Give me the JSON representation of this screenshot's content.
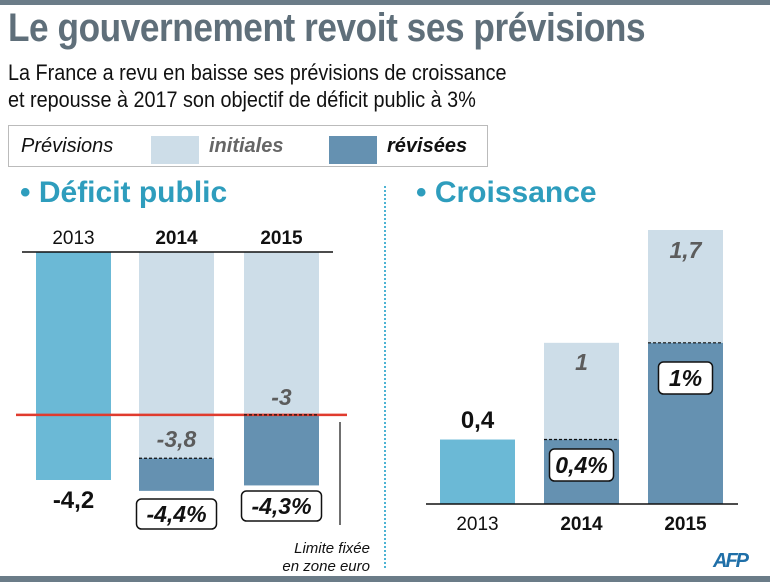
{
  "header": {
    "title": "Le gouvernement revoit ses prévisions",
    "subtitle_line1": "La France a revu en baisse ses prévisions de croissance",
    "subtitle_line2": "et repousse à 2017 son objectif de déficit public à 3%"
  },
  "legend": {
    "label": "Prévisions",
    "initial": "initiales",
    "revised": "révisées"
  },
  "colors": {
    "actual": "#6bb9d6",
    "initial": "#cddde8",
    "revised": "#6591b1",
    "limit": "#e03b2e",
    "section": "#2e9dbd"
  },
  "source": "AFP",
  "chart_data": [
    {
      "type": "bar",
      "title": "• Déficit public",
      "categories": [
        "2013",
        "2014",
        "2015"
      ],
      "series": [
        {
          "name": "initiales",
          "values": [
            null,
            -3.8,
            -3.0
          ]
        },
        {
          "name": "révisées",
          "values": [
            -4.2,
            -4.4,
            -4.3
          ]
        }
      ],
      "labels": {
        "actual": [
          "-4,2"
        ],
        "initial": [
          "",
          "-3,8",
          "-3"
        ],
        "revised": [
          "",
          "-4,4%",
          "-4,3%"
        ]
      },
      "reference_line": {
        "value": -3,
        "label_line1": "Limite fixée",
        "label_line2": "en zone euro"
      },
      "ylim": [
        -4.4,
        0
      ]
    },
    {
      "type": "bar",
      "title": "• Croissance",
      "categories": [
        "2013",
        "2014",
        "2015"
      ],
      "series": [
        {
          "name": "initiales",
          "values": [
            null,
            1.0,
            1.7
          ]
        },
        {
          "name": "révisées",
          "values": [
            0.4,
            0.4,
            1.0
          ]
        }
      ],
      "labels": {
        "actual": [
          "0,4"
        ],
        "initial": [
          "",
          "1",
          "1,7"
        ],
        "revised": [
          "",
          "0,4%",
          "1%"
        ]
      },
      "ylim": [
        0,
        1.7
      ]
    }
  ]
}
